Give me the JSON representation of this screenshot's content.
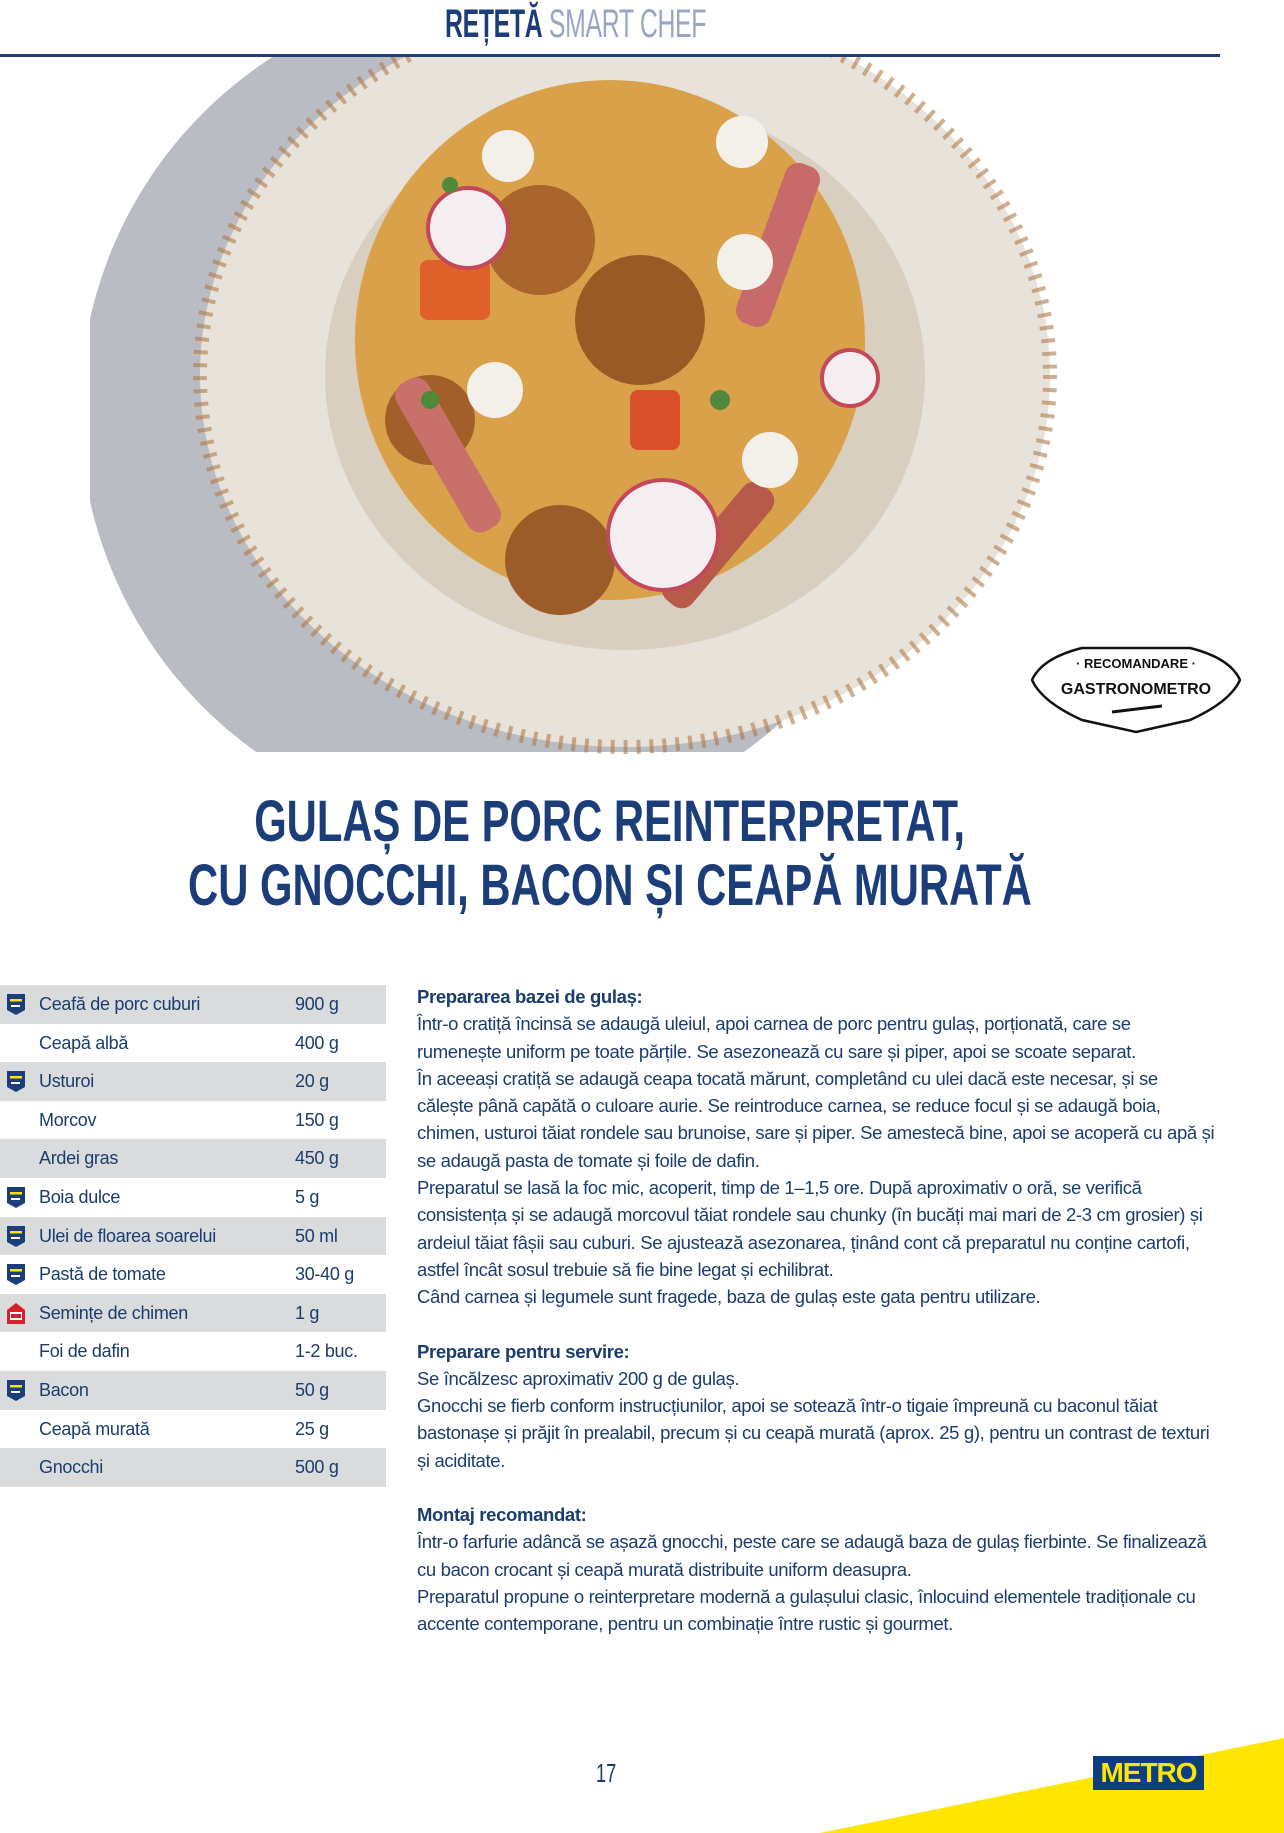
{
  "header": {
    "title_part1": "REȚETĂ",
    "title_part2": "SMART CHEF"
  },
  "badge": {
    "top_text": "RECOMANDARE",
    "brand_text": "GASTRONOMETRO"
  },
  "recipe_title": {
    "line1": "GULAȘ DE PORC REINTERPRETAT,",
    "line2": "CU GNOCCHI, BACON ȘI CEAPĂ MURATĂ"
  },
  "ingredients": [
    {
      "name": "Ceafă de porc cuburi",
      "qty": "900 g",
      "icon": "metro-chef-icon"
    },
    {
      "name": "Ceapă albă",
      "qty": "400 g",
      "icon": ""
    },
    {
      "name": "Usturoi",
      "qty": "20 g",
      "icon": "metro-chef-icon"
    },
    {
      "name": "Morcov",
      "qty": "150 g",
      "icon": ""
    },
    {
      "name": "Ardei gras",
      "qty": "450 g",
      "icon": ""
    },
    {
      "name": "Boia dulce",
      "qty": "5 g",
      "icon": "metro-chef-icon"
    },
    {
      "name": "Ulei de floarea soarelui",
      "qty": "50 ml",
      "icon": "metro-chef-icon"
    },
    {
      "name": "Pastă de tomate",
      "qty": "30-40 g",
      "icon": "metro-chef-icon"
    },
    {
      "name": "Semințe de chimen",
      "qty": "1 g",
      "icon": "red-house-brand-icon"
    },
    {
      "name": "Foi de dafin",
      "qty": "1-2 buc.",
      "icon": ""
    },
    {
      "name": "Bacon",
      "qty": "50 g",
      "icon": "metro-chef-icon"
    },
    {
      "name": "Ceapă murată",
      "qty": "25 g",
      "icon": ""
    },
    {
      "name": "Gnocchi",
      "qty": "500 g",
      "icon": ""
    }
  ],
  "sections": [
    {
      "heading": "Prepararea bazei de gulaș:",
      "paragraphs": [
        "Într-o cratiță încinsă se adaugă uleiul, apoi carnea de porc pentru gulaș, porționată, care se rumenește uniform pe toate părțile. Se asezonează cu sare și piper, apoi se scoate separat.",
        "În aceeași cratiță se adaugă ceapa tocată mărunt, completând cu ulei dacă este necesar, și se călește până capătă o culoare aurie. Se reintroduce carnea, se reduce focul și se adaugă boia, chimen, usturoi tăiat rondele sau brunoise, sare și piper. Se amestecă bine, apoi se acoperă cu apă și se adaugă pasta de tomate și foile de dafin.",
        "Preparatul se lasă la foc mic, acoperit, timp de 1–1,5 ore. După aproximativ o oră, se verifică consistența și se adaugă morcovul tăiat rondele sau chunky (în bucăți mai mari de 2-3 cm grosier) și ardeiul tăiat fâșii sau cuburi. Se ajustează asezonarea, ținând cont că preparatul nu conține cartofi, astfel încât sosul trebuie să fie bine legat și echilibrat.",
        "Când carnea și legumele sunt fragede, baza de gulaș este gata pentru utilizare."
      ]
    },
    {
      "heading": "Preparare pentru servire:",
      "paragraphs": [
        "Se încălzesc aproximativ 200 g de gulaș.",
        "Gnocchi se fierb conform instrucțiunilor, apoi se sotează într-o tigaie împreună cu baconul tăiat bastonașe și prăjit în prealabil, precum și cu ceapă murată (aprox. 25 g), pentru un contrast de texturi și aciditate."
      ]
    },
    {
      "heading": "Montaj recomandat:",
      "paragraphs": [
        "Într-o farfurie adâncă se așază gnocchi, peste care se adaugă baza de gulaș fierbinte. Se finalizează cu bacon crocant și ceapă murată distribuite uniform deasupra.",
        "Preparatul propune o reinterpretare modernă a gulașului clasic, înlocuind elementele tradiționale cu accente contemporane, pentru un combinație între rustic și gourmet."
      ]
    }
  ],
  "footer": {
    "page_number": "17",
    "logo": "METRO"
  },
  "colors": {
    "navy": "#1b3d7a",
    "light_header": "#9aa5c6",
    "row_gray": "#d9dbdd",
    "metro_yellow": "#ffe600",
    "metro_blue": "#0d3e82"
  }
}
